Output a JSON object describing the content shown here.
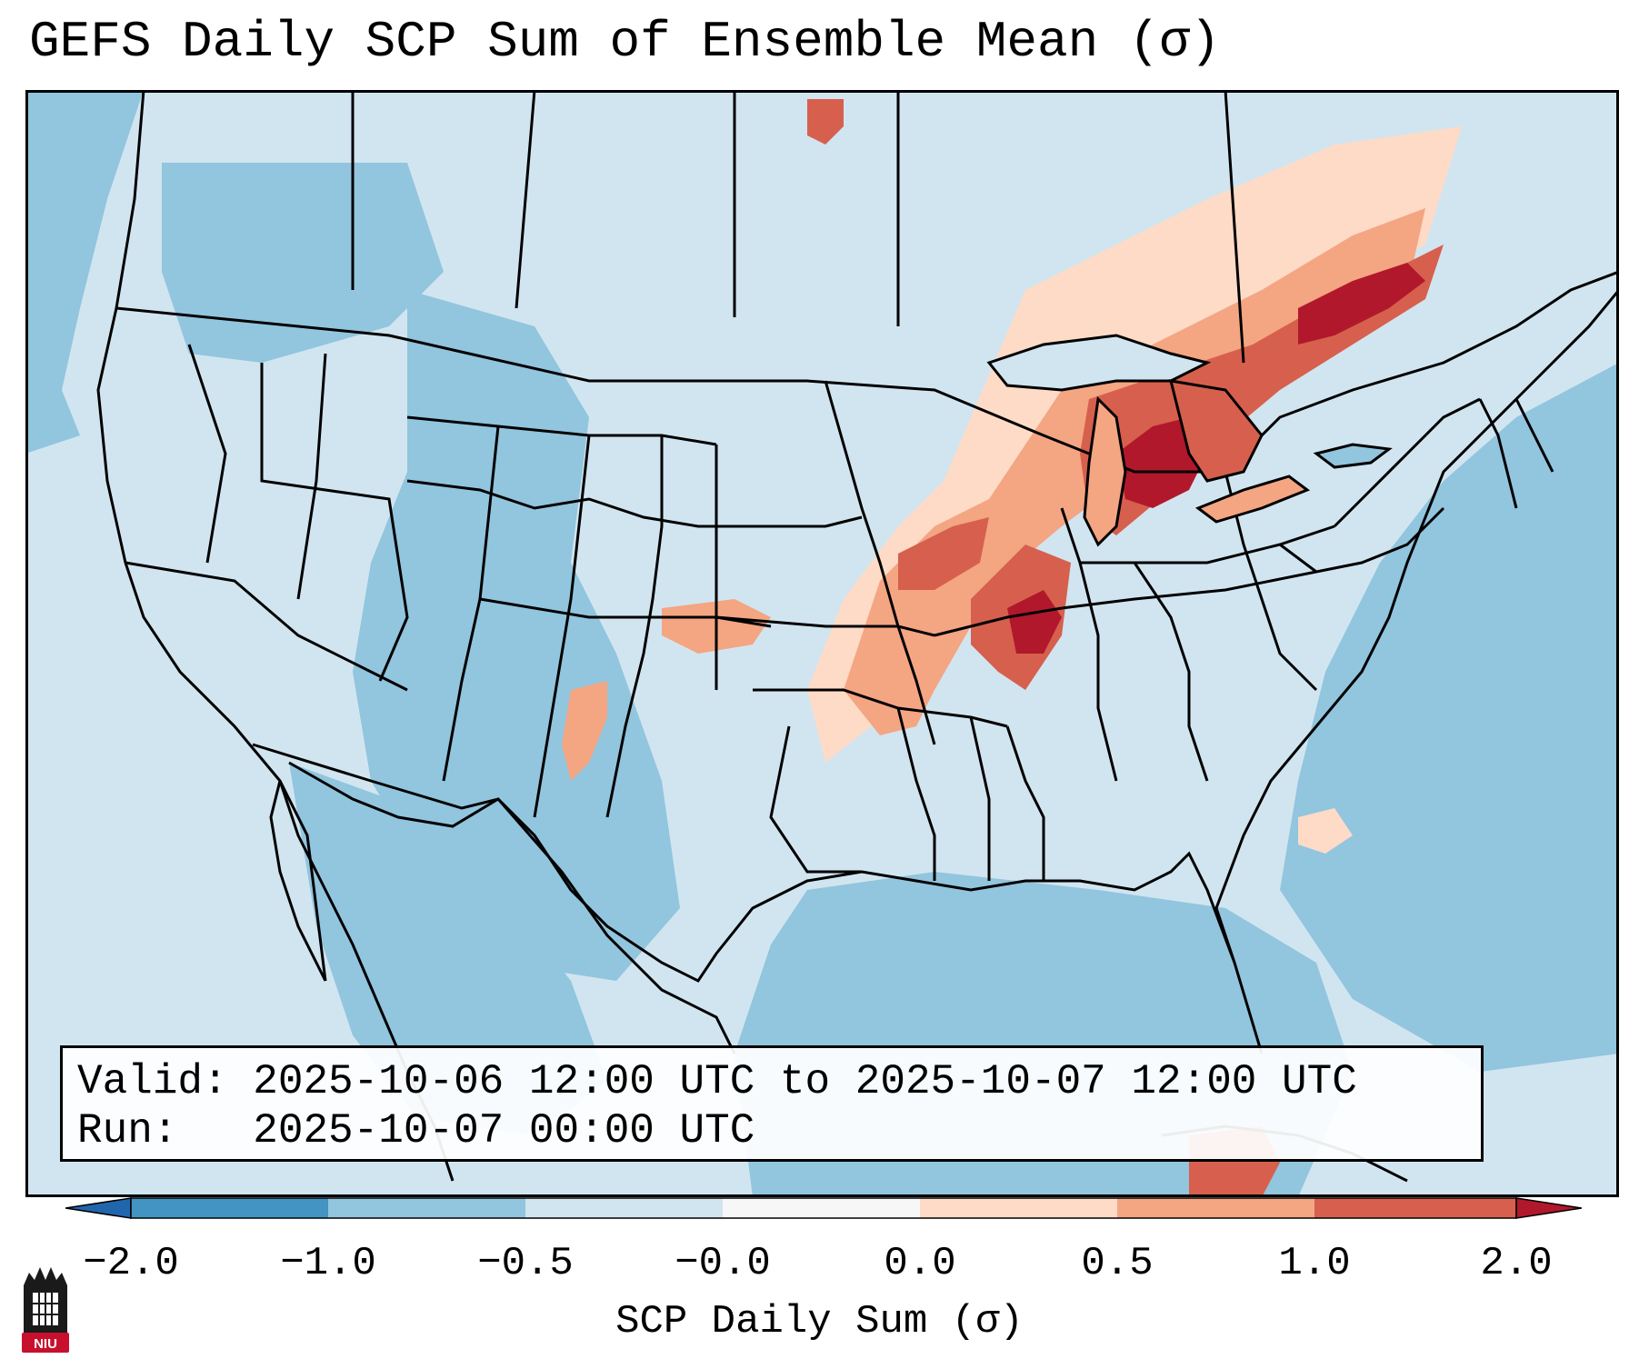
{
  "title": "GEFS Daily SCP Sum of Ensemble Mean (σ)",
  "info": {
    "valid_line": "Valid: 2025-10-06 12:00 UTC to 2025-10-07 12:00 UTC",
    "run_line": "Run:   2025-10-07 00:00 UTC"
  },
  "colorbar": {
    "label": "SCP Daily Sum (σ)",
    "ticks": [
      "−2.0",
      "−1.0",
      "−0.5",
      "−0.0",
      "0.0",
      "0.5",
      "1.0",
      "2.0"
    ],
    "colors": [
      "#4393c3",
      "#92c5de",
      "#d1e5f0",
      "#f7f7f7",
      "#fddbc7",
      "#f4a582",
      "#d6604d",
      "#b2182b"
    ]
  },
  "map": {
    "domain": "Contiguous United States",
    "ocean_color": "#92c5de",
    "land_color": "#d1e5f0",
    "positive_anomaly_colors": [
      "#fddbc7",
      "#f4a582",
      "#d6604d",
      "#b2182b"
    ]
  },
  "logo": {
    "text": "NIU",
    "color": "#c8102e"
  }
}
